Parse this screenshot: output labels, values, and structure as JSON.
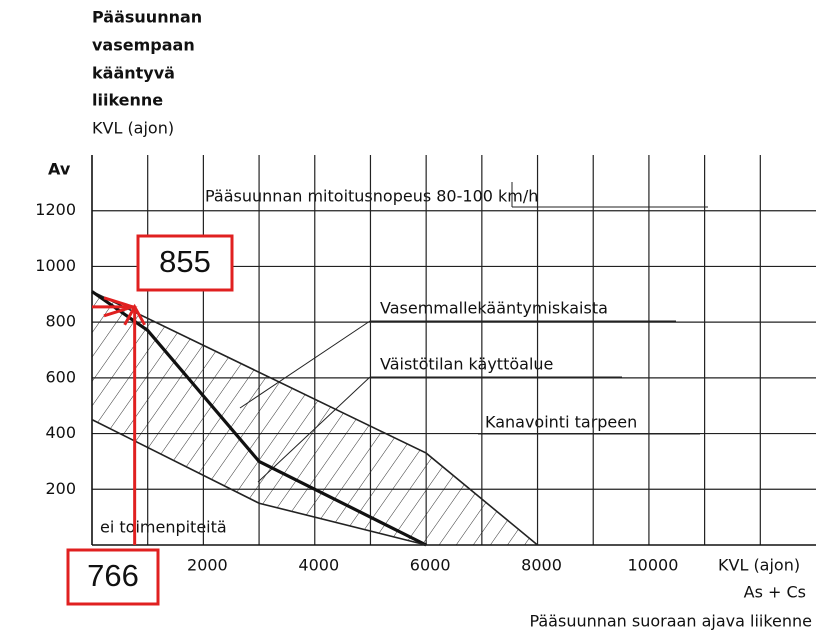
{
  "chart_data": {
    "type": "line",
    "title_lines": [
      "Pääsuunnan",
      "vasempaan",
      "kääntyvä",
      "liikenne",
      "KVL (ajon)"
    ],
    "y_label": "Av",
    "x_label": "KVL (ajon)",
    "x_sublabel": "As + Cs",
    "x_caption": "Pääsuunnan suoraan ajava liikenne",
    "annotations": [
      "Pääsuunnan mitoitusnopeus  80-100 km/h",
      "Vasemmallekääntymiskaista",
      "Väistötilan käyttöalue",
      "Kanavointi tarpeen",
      "ei toimenpiteitä"
    ],
    "xlim": [
      0,
      13000
    ],
    "ylim": [
      0,
      1400
    ],
    "xticks": [
      2000,
      4000,
      6000,
      8000,
      10000
    ],
    "xgrid": [
      1000,
      2000,
      3000,
      4000,
      5000,
      6000,
      7000,
      8000,
      9000,
      10000,
      11000,
      12000
    ],
    "yticks": [
      200,
      400,
      600,
      800,
      1000,
      1200
    ],
    "grid": true,
    "series": [
      {
        "color": "#222222",
        "x": [
          0,
          6000,
          8000
        ],
        "values": [
          910,
          330,
          0
        ]
      },
      {
        "color": "#111111",
        "x": [
          0,
          1000,
          3000,
          6000
        ],
        "values": [
          910,
          770,
          300,
          0
        ]
      },
      {
        "color": "#222222",
        "x": [
          0,
          3000,
          6000
        ],
        "values": [
          450,
          150,
          0
        ]
      }
    ],
    "marker": {
      "x": 766,
      "y": 855,
      "color": "#e02020"
    }
  }
}
